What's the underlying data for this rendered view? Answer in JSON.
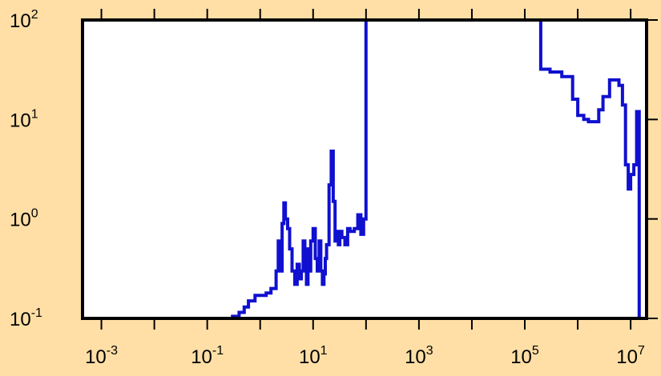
{
  "chart_data": {
    "type": "line",
    "title": "",
    "xlabel": "",
    "ylabel": "",
    "xscale": "log",
    "yscale": "log",
    "xlim": [
      0.00044,
      20000000
    ],
    "ylim": [
      0.1,
      100
    ],
    "grid": false,
    "colors": {
      "background": "#ffdfa6",
      "plot_area": "#ffffff",
      "line": "#1010d0",
      "frame": "#000000"
    },
    "x_ticks": [
      {
        "base": "10",
        "exp": "-3",
        "value": 0.001
      },
      {
        "base": "10",
        "exp": "-1",
        "value": 0.1
      },
      {
        "base": "10",
        "exp": "1",
        "value": 10
      },
      {
        "base": "10",
        "exp": "3",
        "value": 1000
      },
      {
        "base": "10",
        "exp": "5",
        "value": 100000
      },
      {
        "base": "10",
        "exp": "7",
        "value": 10000000
      }
    ],
    "y_ticks": [
      {
        "base": "10",
        "exp": "2",
        "value": 100
      },
      {
        "base": "10",
        "exp": "1",
        "value": 10
      },
      {
        "base": "10",
        "exp": "0",
        "value": 1
      },
      {
        "base": "10",
        "exp": "-1",
        "value": 0.1
      }
    ],
    "series": [
      {
        "style": "step",
        "x": [
          0.00044,
          0.3,
          0.4,
          0.5,
          0.6,
          0.8,
          1.0,
          1.3,
          1.6,
          2.0,
          2.2,
          2.4,
          2.6,
          2.8,
          3.0,
          3.3,
          3.6,
          4.0,
          4.5,
          5.0,
          5.5,
          6.0,
          6.5,
          7.0,
          7.5,
          8.0,
          8.5,
          9.0,
          10.0,
          11.0,
          12.0,
          13.0,
          14.0,
          15.0,
          16.0,
          17.0,
          18.0,
          20.0,
          22.0,
          24.0,
          26.0,
          28.0,
          30.0,
          32.0,
          35.0,
          40.0,
          45.0,
          50.0,
          60.0,
          70.0,
          80.0,
          90.0,
          100.0,
          115.0,
          200000.0,
          300000.0,
          500000.0,
          800000.0,
          1000000.0,
          1300000.0,
          1600000.0,
          2000000.0,
          2500000.0,
          3000000.0,
          4000000.0,
          5000000.0,
          6000000.0,
          7000000.0,
          8000000.0,
          9000000.0,
          10000000.0,
          11500000.0,
          13000000.0,
          14500000.0,
          16000000.0,
          17500000.0,
          20000000.0
        ],
        "y": [
          0.1,
          0.105,
          0.115,
          0.13,
          0.15,
          0.17,
          0.17,
          0.18,
          0.2,
          0.3,
          0.6,
          0.3,
          0.9,
          1.45,
          1.0,
          0.8,
          0.5,
          0.3,
          0.22,
          0.35,
          0.25,
          0.3,
          0.6,
          0.3,
          0.22,
          0.5,
          0.3,
          0.6,
          0.8,
          0.4,
          0.3,
          0.6,
          0.3,
          0.22,
          0.28,
          0.4,
          0.55,
          2.2,
          4.8,
          1.5,
          0.6,
          0.75,
          0.55,
          0.75,
          0.65,
          0.55,
          0.8,
          0.75,
          0.8,
          1.1,
          0.7,
          1.0,
          100.0,
          100.0,
          32.0,
          30.0,
          27.0,
          16.0,
          11.0,
          10.0,
          9.5,
          9.5,
          12.5,
          17.0,
          25.0,
          25.0,
          22.0,
          14.0,
          3.5,
          2.0,
          2.8,
          3.5,
          12.0,
          0.1,
          0.1,
          0.1,
          0.1
        ]
      }
    ]
  }
}
